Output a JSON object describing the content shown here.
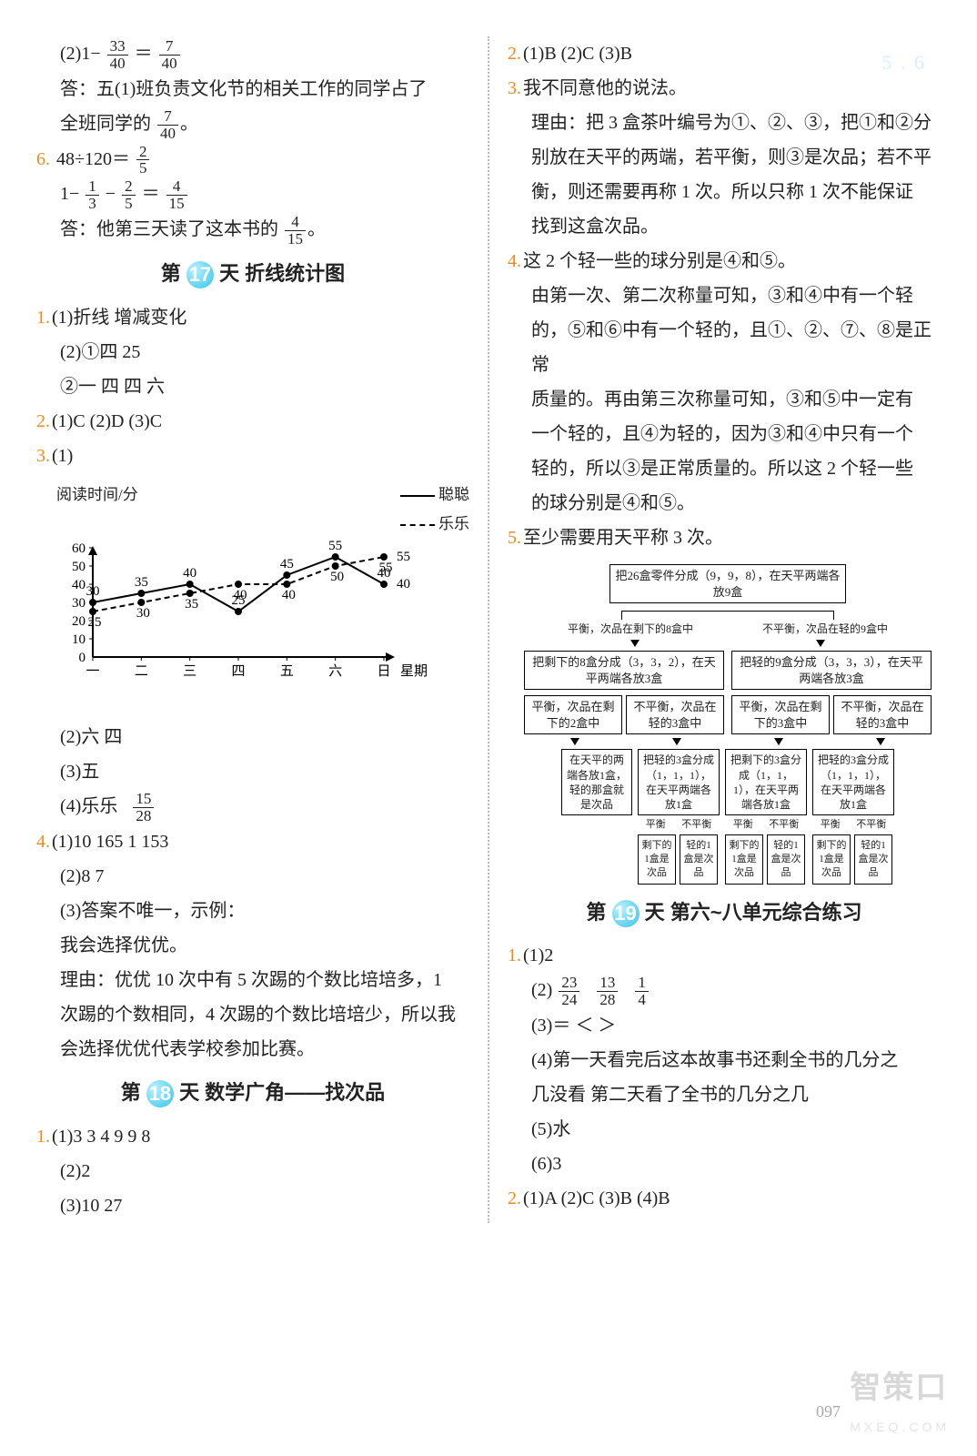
{
  "watermarks": {
    "top": "5 . 6",
    "bottom_main": "智策口",
    "bottom_sub": "MXEQ.COM"
  },
  "page_number": "097",
  "left": {
    "l1": "(2)1−",
    "l2": "答：五(1)班负责文化节的相关工作的同学占了",
    "l3": "全班同学的",
    "q6": "6.",
    "q6a": "48÷120＝",
    "q6b": "1−",
    "q6c": "答：他第三天读了这本书的",
    "sec17": "第",
    "sec17d": "17",
    "sec17t": "天  折线统计图",
    "a1": "1.",
    "a1_1": "(1)折线  增减变化",
    "a1_2": "(2)①四  25",
    "a1_3": "②一  四  四  六",
    "a2": "2.",
    "a2t": "(1)C  (2)D  (3)C",
    "a3": "3.",
    "a3_1": "(1)",
    "chart": {
      "ylabel": "阅读时间/分",
      "legend1": "聪聪",
      "legend2": "乐乐",
      "categories": [
        "一",
        "二",
        "三",
        "四",
        "五",
        "六",
        "日"
      ],
      "xlabel": "星期",
      "yticks": [
        0,
        10,
        20,
        30,
        40,
        50,
        60
      ],
      "series1": [
        30,
        35,
        40,
        25,
        45,
        55,
        40
      ],
      "series1_labels": [
        "30",
        "35",
        "40",
        "25",
        "45",
        "55",
        "40"
      ],
      "series2": [
        25,
        30,
        35,
        40,
        40,
        50,
        55
      ],
      "series2_labels": [
        "25",
        "30",
        "35",
        "40",
        "40",
        "50",
        "55"
      ],
      "plot_bg": "#ffffff",
      "axis_color": "#000000"
    },
    "a3_2": "(2)六  四",
    "a3_3": "(3)五",
    "a3_4": "(4)乐乐",
    "a4": "4.",
    "a4_1": "(1)10  165  1  153",
    "a4_2": "(2)8  7",
    "a4_3": "(3)答案不唯一，示例：",
    "a4_4": "我会选择优优。",
    "a4_5": "理由：优优 10 次中有 5 次踢的个数比培培多，1",
    "a4_6": "次踢的个数相同，4 次踢的个数比培培少，所以我",
    "a4_7": "会选择优优代表学校参加比赛。",
    "sec18": "第",
    "sec18d": "18",
    "sec18t": "天  数学广角——找次品",
    "b1": "1.",
    "b1_1": "(1)3  3  4  9  9  8",
    "b1_2": "(2)2",
    "b1_3": "(3)10  27",
    "fracs": {
      "f1n": "33",
      "f1d": "40",
      "f2n": "7",
      "f2d": "40",
      "f3n": "7",
      "f3d": "40",
      "f4n": "2",
      "f4d": "5",
      "f5n": "1",
      "f5d": "3",
      "f6n": "2",
      "f6d": "5",
      "f7n": "4",
      "f7d": "15",
      "f8n": "4",
      "f8d": "15",
      "f9n": "15",
      "f9d": "28"
    }
  },
  "right": {
    "r2": "2.",
    "r2t": "(1)B  (2)C  (3)B",
    "r3": "3.",
    "r3a": "我不同意他的说法。",
    "r3b": "理由：把 3 盒茶叶编号为①、②、③，把①和②分",
    "r3c": "别放在天平的两端，若平衡，则③是次品；若不平",
    "r3d": "衡，则还需要再称 1 次。所以只称 1 次不能保证",
    "r3e": "找到这盒次品。",
    "r4": "4.",
    "r4a": "这 2 个轻一些的球分别是④和⑤。",
    "r4b": "由第一次、第二次称量可知，③和④中有一个轻",
    "r4c": "的，⑤和⑥中有一个轻的，且①、②、⑦、⑧是正常",
    "r4d": "质量的。再由第三次称量可知，③和⑤中一定有",
    "r4e": "一个轻的，且④为轻的，因为③和④中只有一个",
    "r4f": "轻的，所以③是正常质量的。所以这 2 个轻一些",
    "r4g": "的球分别是④和⑤。",
    "r5": "5.",
    "r5a": "至少需要用天平称 3 次。",
    "flow": {
      "top": "把26盒零件分成（9，9，8），在天平两端各放9盒",
      "b1": "平衡，次品在剩下的8盒中",
      "b2": "不平衡，次品在轻的9盒中",
      "c1": "把剩下的8盒分成（3，3，2），在天平两端各放3盒",
      "c2": "把轻的9盒分成（3，3，3），在天平两端各放3盒",
      "d1": "平衡，次品在剩下的2盒中",
      "d2": "不平衡，次品在轻的3盒中",
      "d3": "平衡，次品在剩下的3盒中",
      "d4": "不平衡，次品在轻的3盒中",
      "e1": "在天平的两端各放1盒，轻的那盒就是次品",
      "e2": "把轻的3盒分成（1，1，1），在天平两端各放1盒",
      "e3": "把剩下的3盒分成（1，1，1），在天平两端各放1盒",
      "e4": "把轻的3盒分成（1，1，1），在天平两端各放1盒",
      "lab_ping": "平衡",
      "lab_bu": "不平衡",
      "leaf1": "剩下的1盒是次品",
      "leaf2": "轻的1盒是次品"
    },
    "sec19": "第",
    "sec19d": "19",
    "sec19t": "天  第六~八单元综合练习",
    "s1": "1.",
    "s1_1": "(1)2",
    "s1_2": "(2)",
    "s1_3": "(3)＝  ＜  ＞",
    "s1_4": "(4)第一天看完后这本故事书还剩全书的几分之",
    "s1_5": "几没看  第二天看了全书的几分之几",
    "s1_6": "(5)水",
    "s1_7": "(6)3",
    "s2": "2.",
    "s2t": "(1)A  (2)C  (3)B  (4)B",
    "fracs": {
      "g1n": "23",
      "g1d": "24",
      "g2n": "13",
      "g2d": "28",
      "g3n": "1",
      "g3d": "4"
    }
  }
}
